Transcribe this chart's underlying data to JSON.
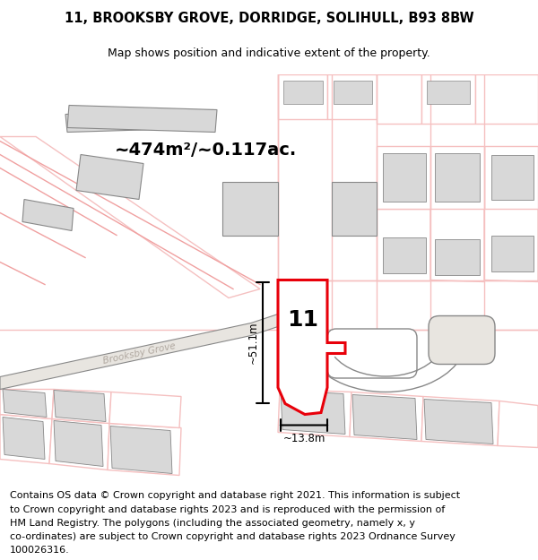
{
  "title_line1": "11, BROOKSBY GROVE, DORRIDGE, SOLIHULL, B93 8BW",
  "title_line2": "Map shows position and indicative extent of the property.",
  "area_label": "~474m²/~0.117ac.",
  "width_label": "~13.8m",
  "height_label": "~51.1m",
  "number_label": "11",
  "street_label": "Brooksby Grove",
  "footer_lines": [
    "Contains OS data © Crown copyright and database right 2021. This information is subject",
    "to Crown copyright and database rights 2023 and is reproduced with the permission of",
    "HM Land Registry. The polygons (including the associated geometry, namely x, y",
    "co-ordinates) are subject to Crown copyright and database rights 2023 Ordnance Survey",
    "100026316."
  ],
  "map_bg": "#f8f6f3",
  "red_color": "#e8000a",
  "light_red": "#f0a0a0",
  "light_red2": "#f5c0c0",
  "gray_fill": "#c8c8c8",
  "gray_light": "#d8d8d8",
  "dark_gray": "#888888",
  "white": "#ffffff"
}
